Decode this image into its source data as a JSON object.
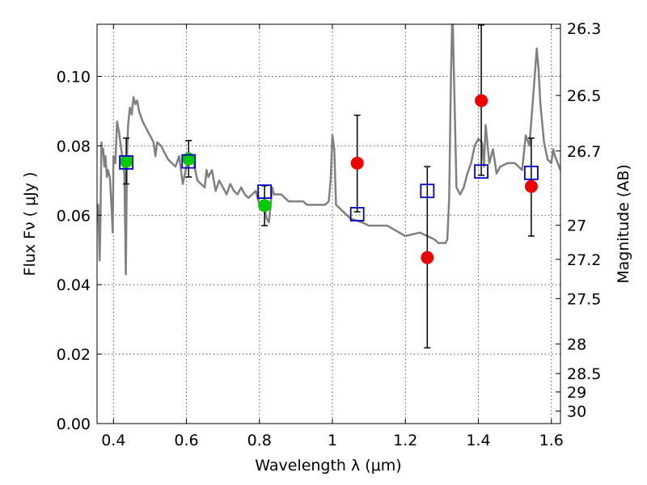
{
  "chart_data": {
    "type": "scatter",
    "xlabel": "Wavelength  λ (μm)",
    "ylabel": "Flux  Fν  ( μJy )",
    "ylabel_right": "Magnitude (AB)",
    "xlim": [
      0.355,
      1.625
    ],
    "ylim": [
      0.0,
      0.115
    ],
    "grid": true,
    "xticks": [
      {
        "value": 0.4,
        "label": "0.4"
      },
      {
        "value": 0.6,
        "label": "0.6"
      },
      {
        "value": 0.8,
        "label": "0.8"
      },
      {
        "value": 1.0,
        "label": "1"
      },
      {
        "value": 1.2,
        "label": "1.2"
      },
      {
        "value": 1.4,
        "label": "1.4"
      },
      {
        "value": 1.6,
        "label": "1.6"
      }
    ],
    "yticks": [
      {
        "value": 0.0,
        "label": "0.00"
      },
      {
        "value": 0.02,
        "label": "0.02"
      },
      {
        "value": 0.04,
        "label": "0.04"
      },
      {
        "value": 0.06,
        "label": "0.06"
      },
      {
        "value": 0.08,
        "label": "0.08"
      },
      {
        "value": 0.1,
        "label": "0.10"
      }
    ],
    "mag_ticks": [
      {
        "flux": 0.1138,
        "label": "26.3"
      },
      {
        "flux": 0.0945,
        "label": "26.5"
      },
      {
        "flux": 0.0785,
        "label": "26.7"
      },
      {
        "flux": 0.0571,
        "label": "27"
      },
      {
        "flux": 0.0473,
        "label": "27.2"
      },
      {
        "flux": 0.036,
        "label": "27.5"
      },
      {
        "flux": 0.0229,
        "label": "28"
      },
      {
        "flux": 0.0144,
        "label": "28.5"
      },
      {
        "flux": 0.0091,
        "label": "29"
      },
      {
        "flux": 0.0036,
        "label": "30"
      }
    ],
    "spectrum": {
      "color": "#808080",
      "x": [
        0.355,
        0.358,
        0.362,
        0.364,
        0.367,
        0.37,
        0.372,
        0.375,
        0.378,
        0.382,
        0.385,
        0.39,
        0.395,
        0.398,
        0.4,
        0.405,
        0.41,
        0.415,
        0.42,
        0.425,
        0.43,
        0.434,
        0.437,
        0.44,
        0.445,
        0.45,
        0.455,
        0.46,
        0.465,
        0.47,
        0.48,
        0.49,
        0.5,
        0.51,
        0.515,
        0.52,
        0.53,
        0.54,
        0.55,
        0.56,
        0.57,
        0.58,
        0.59,
        0.6,
        0.61,
        0.62,
        0.63,
        0.64,
        0.65,
        0.655,
        0.66,
        0.67,
        0.68,
        0.69,
        0.7,
        0.71,
        0.72,
        0.73,
        0.74,
        0.75,
        0.76,
        0.77,
        0.78,
        0.79,
        0.8,
        0.81,
        0.82,
        0.826,
        0.83,
        0.835,
        0.84,
        0.86,
        0.88,
        0.9,
        0.92,
        0.93,
        0.94,
        0.96,
        0.98,
        0.99,
        0.995,
        1.0,
        1.005,
        1.01,
        1.02,
        1.05,
        1.08,
        1.1,
        1.15,
        1.2,
        1.24,
        1.26,
        1.28,
        1.29,
        1.295,
        1.31,
        1.315,
        1.32,
        1.325,
        1.328,
        1.33,
        1.34,
        1.35,
        1.36,
        1.37,
        1.38,
        1.39,
        1.4,
        1.41,
        1.415,
        1.42,
        1.43,
        1.44,
        1.45,
        1.46,
        1.48,
        1.5,
        1.51,
        1.52,
        1.53,
        1.54,
        1.55,
        1.56,
        1.565,
        1.57,
        1.58,
        1.59,
        1.6,
        1.605,
        1.61,
        1.625
      ],
      "y": [
        0.058,
        0.063,
        0.047,
        0.057,
        0.081,
        0.078,
        0.079,
        0.074,
        0.077,
        0.071,
        0.073,
        0.071,
        0.062,
        0.055,
        0.077,
        0.075,
        0.087,
        0.084,
        0.08,
        0.076,
        0.072,
        0.043,
        0.077,
        0.086,
        0.091,
        0.089,
        0.094,
        0.092,
        0.093,
        0.09,
        0.087,
        0.085,
        0.083,
        0.081,
        0.077,
        0.081,
        0.08,
        0.078,
        0.076,
        0.075,
        0.074,
        0.077,
        0.069,
        0.074,
        0.077,
        0.075,
        0.07,
        0.069,
        0.068,
        0.073,
        0.071,
        0.073,
        0.067,
        0.07,
        0.068,
        0.066,
        0.069,
        0.067,
        0.066,
        0.068,
        0.066,
        0.065,
        0.066,
        0.067,
        0.063,
        0.064,
        0.059,
        0.058,
        0.062,
        0.068,
        0.066,
        0.066,
        0.064,
        0.064,
        0.064,
        0.063,
        0.063,
        0.063,
        0.063,
        0.064,
        0.07,
        0.083,
        0.079,
        0.063,
        0.062,
        0.059,
        0.058,
        0.057,
        0.057,
        0.054,
        0.055,
        0.054,
        0.053,
        0.052,
        0.052,
        0.052,
        0.053,
        0.065,
        0.1,
        0.115,
        0.115,
        0.068,
        0.066,
        0.068,
        0.072,
        0.075,
        0.08,
        0.082,
        0.081,
        0.074,
        0.086,
        0.075,
        0.079,
        0.072,
        0.074,
        0.075,
        0.075,
        0.074,
        0.073,
        0.083,
        0.08,
        0.094,
        0.108,
        0.102,
        0.092,
        0.081,
        0.076,
        0.075,
        0.079,
        0.077,
        0.073
      ]
    },
    "series": [
      {
        "marker": "circle",
        "color": "#00cc00",
        "points": [
          {
            "x": 0.435,
            "y": 0.0755
          },
          {
            "x": 0.606,
            "y": 0.0762
          },
          {
            "x": 0.814,
            "y": 0.0628
          }
        ]
      },
      {
        "marker": "circle",
        "color": "#ee0000",
        "points": [
          {
            "x": 1.068,
            "y": 0.075
          },
          {
            "x": 1.26,
            "y": 0.0478
          },
          {
            "x": 1.408,
            "y": 0.093
          },
          {
            "x": 1.545,
            "y": 0.0683
          }
        ]
      }
    ],
    "error_bars": [
      {
        "x": 0.435,
        "low": 0.069,
        "high": 0.0822
      },
      {
        "x": 0.606,
        "low": 0.071,
        "high": 0.0815
      },
      {
        "x": 0.814,
        "low": 0.057,
        "high": 0.0685
      },
      {
        "x": 1.068,
        "low": 0.061,
        "high": 0.0888
      },
      {
        "x": 1.26,
        "low": 0.0218,
        "high": 0.074
      },
      {
        "x": 1.408,
        "low": 0.0715,
        "high": 0.1148
      },
      {
        "x": 1.545,
        "low": 0.054,
        "high": 0.0822
      }
    ],
    "model_points": {
      "marker": "square",
      "color": "#0000cc",
      "points": [
        {
          "x": 0.435,
          "y": 0.0752
        },
        {
          "x": 0.606,
          "y": 0.0755
        },
        {
          "x": 0.814,
          "y": 0.0668
        },
        {
          "x": 1.068,
          "y": 0.0603
        },
        {
          "x": 1.26,
          "y": 0.067
        },
        {
          "x": 1.408,
          "y": 0.0726
        },
        {
          "x": 1.545,
          "y": 0.0722
        }
      ]
    }
  }
}
